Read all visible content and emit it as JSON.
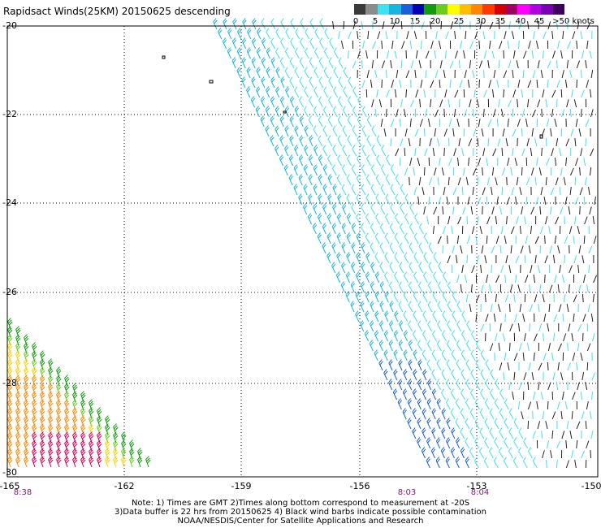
{
  "title": "Rapidsact Winds(25KM) 20150625 descending",
  "legend": {
    "colors": [
      "#3a3a3a",
      "#8c8c8c",
      "#3fe0f0",
      "#17b5e0",
      "#1a5fd8",
      "#0000b8",
      "#129a12",
      "#6acc20",
      "#ffff00",
      "#ffbe00",
      "#ff8800",
      "#ff3c00",
      "#d40000",
      "#a00060",
      "#ff00ff",
      "#b000e0",
      "#7a00b4",
      "#400060"
    ],
    "labels": [
      "0",
      "5",
      "10",
      "15",
      "20",
      "25",
      "30",
      "35",
      "40",
      "45",
      ">50 knots"
    ]
  },
  "lat_labels": [
    "-20",
    "-22",
    "-24",
    "-26",
    "-28",
    "-30"
  ],
  "lon_labels": [
    "-165",
    "-162",
    "-159",
    "-156",
    "-153",
    "-150"
  ],
  "time_labels": [
    "8:38",
    "8:03",
    "8:04"
  ],
  "notes": [
    "Note: 1) Times are GMT 2)Times along bottom correspond to measurement at -20S",
    "3)Data buffer is 22 hrs from 20150625 4) Black wind barbs indicate possible contamination",
    "NOAA/NESDIS/Center for Satellite Applications and Research"
  ]
}
